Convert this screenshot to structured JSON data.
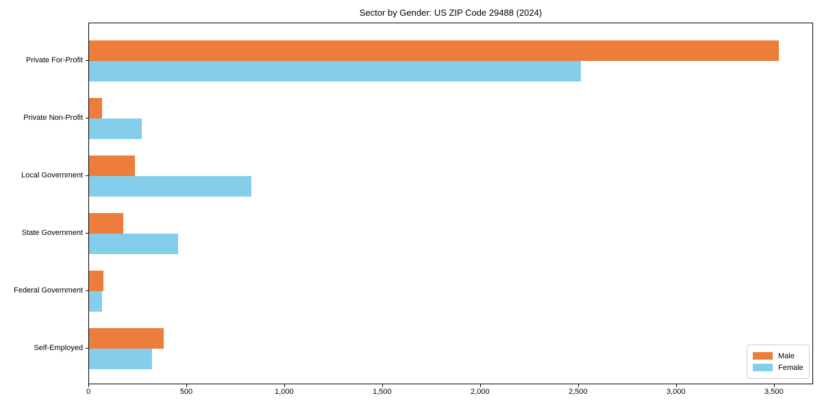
{
  "title": "Sector by Gender: US ZIP Code 29488 (2024)",
  "chart_data": {
    "type": "bar",
    "orientation": "horizontal",
    "title": "Sector by Gender: US ZIP Code 29488 (2024)",
    "categories": [
      "Private For-Profit",
      "Private Non-Profit",
      "Local Government",
      "State Government",
      "Federal Government",
      "Self-Employed"
    ],
    "series": [
      {
        "name": "Male",
        "color": "#ED7D3A",
        "values": [
          3520,
          65,
          235,
          175,
          75,
          380
        ]
      },
      {
        "name": "Female",
        "color": "#85CEEB",
        "values": [
          2510,
          270,
          830,
          455,
          68,
          320
        ]
      }
    ],
    "xlabel": "",
    "ylabel": "",
    "xlim": [
      0,
      3700
    ],
    "x_ticks": [
      0,
      500,
      1000,
      1500,
      2000,
      2500,
      3000,
      3500
    ],
    "x_tick_labels": [
      "0",
      "500",
      "1,000",
      "1,500",
      "2,000",
      "2,500",
      "3,000",
      "3,500"
    ],
    "grid": false,
    "legend_position": "lower right"
  },
  "legend": {
    "items": [
      {
        "label": "Male",
        "color": "#ED7D3A"
      },
      {
        "label": "Female",
        "color": "#85CEEB"
      }
    ]
  }
}
